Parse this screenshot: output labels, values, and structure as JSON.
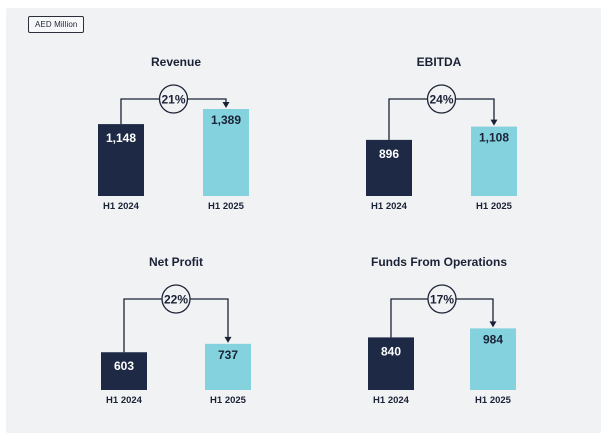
{
  "unit_label": "AED Million",
  "colors": {
    "bar_2024": "#1e2a45",
    "bar_2025": "#84d2de",
    "label_on_dark": "#ffffff",
    "label_on_light": "#1a2235",
    "connector": "#1a2235",
    "background": "#f1f2f4"
  },
  "chart_data": [
    {
      "type": "bar",
      "title": "Revenue",
      "categories": [
        "H1 2024",
        "H1 2025"
      ],
      "values": [
        1148,
        1389
      ],
      "value_labels": [
        "1,148",
        "1,389"
      ],
      "growth_label": "21%"
    },
    {
      "type": "bar",
      "title": "EBITDA",
      "categories": [
        "H1 2024",
        "H1 2025"
      ],
      "values": [
        896,
        1108
      ],
      "value_labels": [
        "896",
        "1,108"
      ],
      "growth_label": "24%"
    },
    {
      "type": "bar",
      "title": "Net Profit",
      "categories": [
        "H1 2024",
        "H1 2025"
      ],
      "values": [
        603,
        737
      ],
      "value_labels": [
        "603",
        "737"
      ],
      "growth_label": "22%"
    },
    {
      "type": "bar",
      "title": "Funds From Operations",
      "categories": [
        "H1 2024",
        "H1 2025"
      ],
      "values": [
        840,
        984
      ],
      "value_labels": [
        "840",
        "984"
      ],
      "growth_label": "17%"
    }
  ]
}
